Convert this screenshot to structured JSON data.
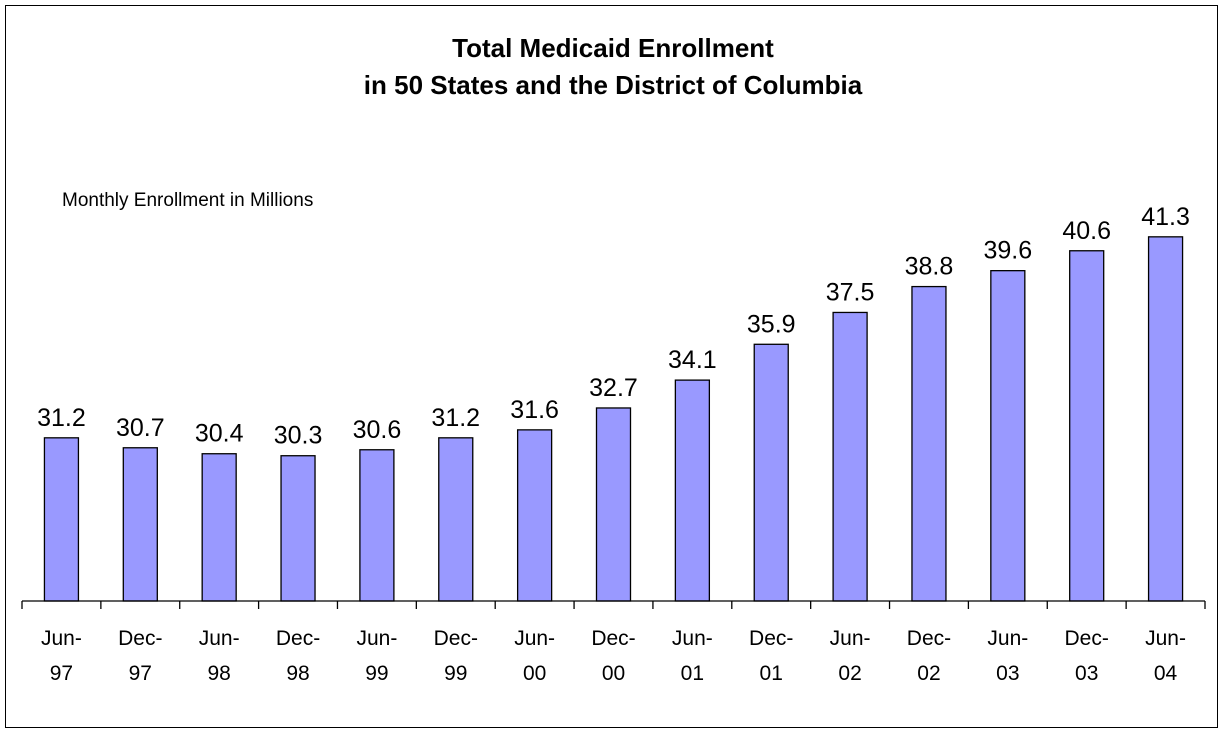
{
  "chart_data": {
    "type": "bar",
    "title": "Total Medicaid Enrollment in 50 States and the District of Columbia",
    "title_lines": [
      "Total Medicaid Enrollment",
      "in 50 States and the District of Columbia"
    ],
    "unit_label": "Monthly Enrollment in Millions",
    "categories": [
      [
        "Jun-",
        "97"
      ],
      [
        "Dec-",
        "97"
      ],
      [
        "Jun-",
        "98"
      ],
      [
        "Dec-",
        "98"
      ],
      [
        "Jun-",
        "99"
      ],
      [
        "Dec-",
        "99"
      ],
      [
        "Jun-",
        "00"
      ],
      [
        "Dec-",
        "00"
      ],
      [
        "Jun-",
        "01"
      ],
      [
        "Dec-",
        "01"
      ],
      [
        "Jun-",
        "02"
      ],
      [
        "Dec-",
        "02"
      ],
      [
        "Jun-",
        "03"
      ],
      [
        "Dec-",
        "03"
      ],
      [
        "Jun-",
        "04"
      ]
    ],
    "values": [
      31.2,
      30.7,
      30.4,
      30.3,
      30.6,
      31.2,
      31.6,
      32.7,
      34.1,
      35.9,
      37.5,
      38.8,
      39.6,
      40.6,
      41.3
    ],
    "value_labels": [
      "31.2",
      "30.7",
      "30.4",
      "30.3",
      "30.6",
      "31.2",
      "31.6",
      "32.7",
      "34.1",
      "35.9",
      "37.5",
      "38.8",
      "39.6",
      "40.6",
      "41.3"
    ],
    "ylim": [
      23,
      43
    ],
    "grid": false,
    "bar_color": "#9999ff",
    "edge_color": "#000000"
  }
}
